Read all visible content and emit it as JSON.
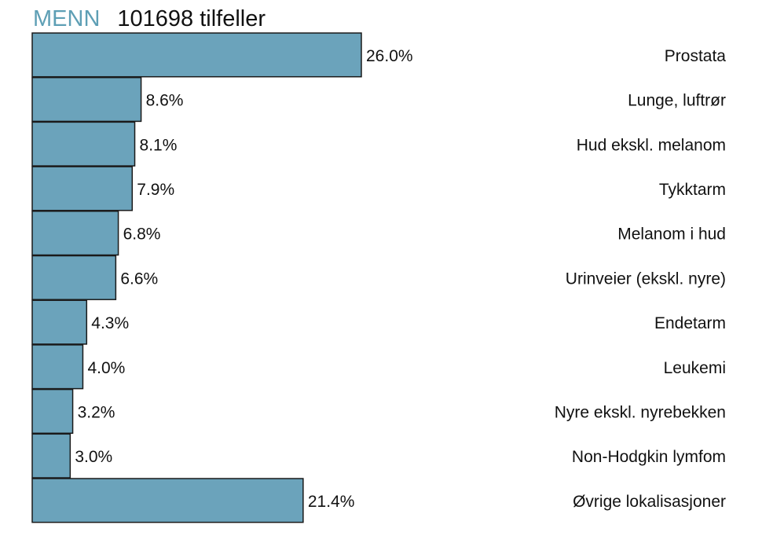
{
  "header": {
    "group": "MENN",
    "count_text": "101698 tilfeller"
  },
  "colors": {
    "bar_fill": "#6ba3bb",
    "bar_stroke": "#1a1a1a",
    "group_label": "#5e9fb5"
  },
  "chart_data": {
    "type": "bar",
    "orientation": "horizontal",
    "categories": [
      "Prostata",
      "Lunge, luftrør",
      "Hud ekskl. melanom",
      "Tykktarm",
      "Melanom i hud",
      "Urinveier (ekskl. nyre)",
      "Endetarm",
      "Leukemi",
      "Nyre ekskl. nyrebekken",
      "Non-Hodgkin lymfom",
      "Øvrige lokalisasjoner"
    ],
    "values": [
      26.0,
      8.6,
      8.1,
      7.9,
      6.8,
      6.6,
      4.3,
      4.0,
      3.2,
      3.0,
      21.4
    ],
    "value_labels": [
      "26.0%",
      "8.6%",
      "8.1%",
      "7.9%",
      "6.8%",
      "6.6%",
      "4.3%",
      "4.0%",
      "3.2%",
      "3.0%",
      "21.4%"
    ],
    "unit": "%",
    "xlim": [
      0,
      26.0
    ],
    "grid": false,
    "legend": "none"
  }
}
